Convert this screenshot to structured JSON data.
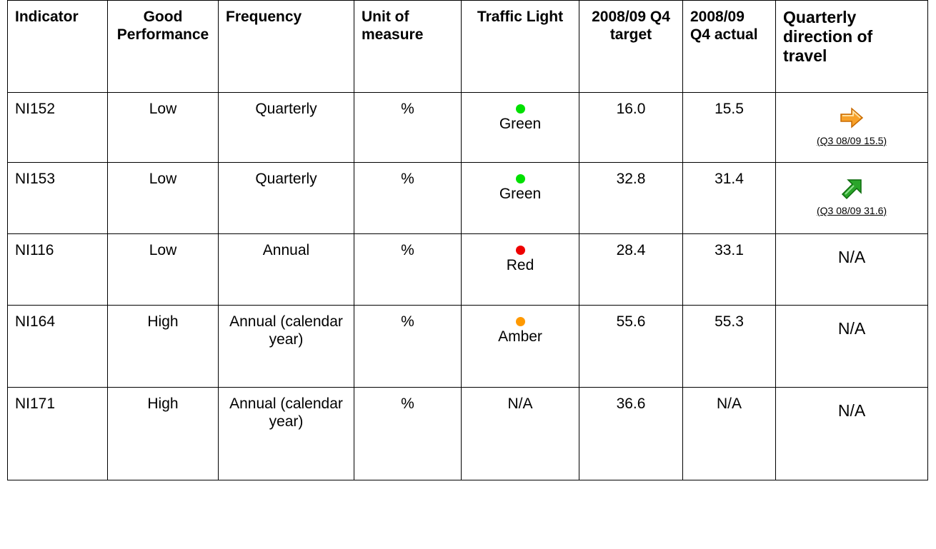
{
  "table": {
    "header": [
      "Indicator",
      "Good Performance",
      "Frequency",
      "Unit of measure",
      "Traffic Light",
      "2008/09 Q4 target",
      "2008/09 Q4 actual",
      "Quarterly direction of travel"
    ],
    "rows": [
      {
        "indicator": "NI152",
        "good": "Low",
        "frequency": "Quarterly",
        "unit": "%",
        "light": {
          "label": "Green",
          "color": "#00e000"
        },
        "target": "16.0",
        "actual": "15.5",
        "direction": "(Q3 08/09 15.5)"
      },
      {
        "indicator": "NI153",
        "good": "Low",
        "frequency": "Quarterly",
        "unit": "%",
        "light": {
          "label": "Green",
          "color": "#00e000"
        },
        "target": "32.8",
        "actual": "31.4",
        "direction": "(Q3 08/09 31.6)"
      },
      {
        "indicator": "NI116",
        "good": "Low",
        "frequency": "Annual",
        "unit": "%",
        "light": {
          "label": "Red",
          "color": "#ee0000"
        },
        "target": "28.4",
        "actual": "33.1",
        "direction": "N/A"
      },
      {
        "indicator": "NI164",
        "good": "High",
        "frequency": "Annual (calendar year)",
        "unit": "%",
        "light": {
          "label": "Amber",
          "color": "#ff9900"
        },
        "target": "55.6",
        "actual": "55.3",
        "direction": "N/A"
      },
      {
        "indicator": "NI171",
        "good": "High",
        "frequency": "Annual (calendar year)",
        "unit": "%",
        "light": {
          "label": "N/A"
        },
        "target": "36.6",
        "actual": "N/A",
        "direction": "N/A"
      }
    ]
  }
}
